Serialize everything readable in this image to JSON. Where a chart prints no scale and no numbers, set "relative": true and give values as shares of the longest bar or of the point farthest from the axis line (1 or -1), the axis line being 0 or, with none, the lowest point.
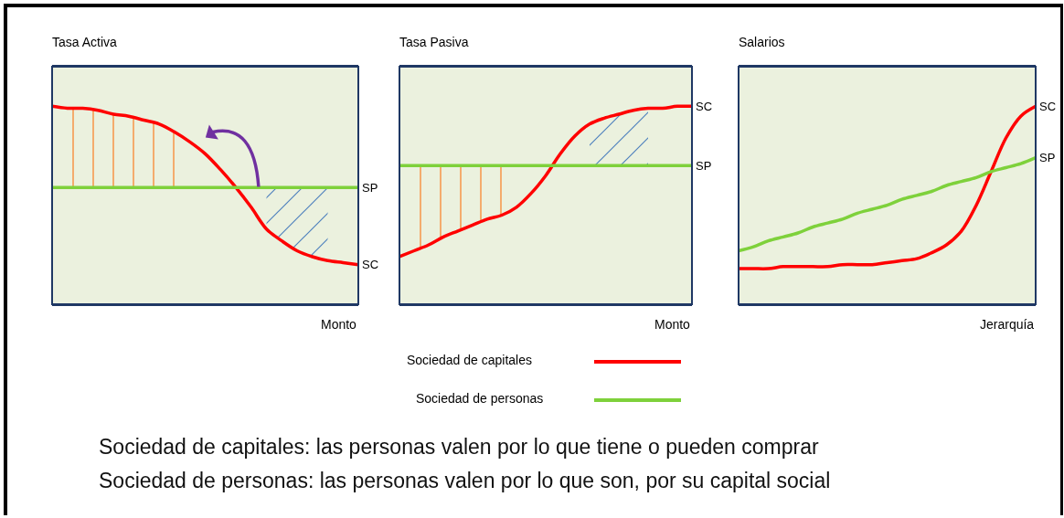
{
  "chart_data": [
    {
      "type": "line",
      "title": "Tasa Activa",
      "xlabel": "Monto",
      "relative": true,
      "categories": [
        null,
        null,
        null,
        null,
        null,
        null,
        null,
        null,
        null,
        null,
        null,
        null,
        null,
        null,
        null,
        null,
        null,
        null,
        null,
        null,
        null
      ],
      "series": [
        {
          "name": "SC",
          "color": "#ff0000",
          "values": [
            1.0,
            0.99,
            0.99,
            0.98,
            0.96,
            0.95,
            0.93,
            0.91,
            0.87,
            0.82,
            0.76,
            0.68,
            0.59,
            0.49,
            0.38,
            0.32,
            0.27,
            0.24,
            0.22,
            0.21,
            0.2
          ]
        },
        {
          "name": "SP",
          "color": "#7ed13b",
          "values": [
            0.59,
            0.59,
            0.59,
            0.59,
            0.59,
            0.59,
            0.59,
            0.59,
            0.59,
            0.59,
            0.59,
            0.59,
            0.59,
            0.59,
            0.59,
            0.59,
            0.59,
            0.59,
            0.59,
            0.59,
            0.59
          ]
        }
      ]
    },
    {
      "type": "line",
      "title": "Tasa Pasiva",
      "xlabel": "Monto",
      "relative": true,
      "categories": [
        null,
        null,
        null,
        null,
        null,
        null,
        null,
        null,
        null,
        null,
        null,
        null,
        null,
        null,
        null,
        null,
        null,
        null,
        null,
        null,
        null
      ],
      "series": [
        {
          "name": "SC",
          "color": "#ff0000",
          "values": [
            0.24,
            0.27,
            0.3,
            0.34,
            0.37,
            0.4,
            0.43,
            0.45,
            0.49,
            0.56,
            0.65,
            0.76,
            0.85,
            0.91,
            0.94,
            0.96,
            0.98,
            0.99,
            0.99,
            1.0,
            1.0
          ]
        },
        {
          "name": "SP",
          "color": "#7ed13b",
          "values": [
            0.7,
            0.7,
            0.7,
            0.7,
            0.7,
            0.7,
            0.7,
            0.7,
            0.7,
            0.7,
            0.7,
            0.7,
            0.7,
            0.7,
            0.7,
            0.7,
            0.7,
            0.7,
            0.7,
            0.7,
            0.7
          ]
        }
      ]
    },
    {
      "type": "line",
      "title": "Salarios",
      "xlabel": "Jerarquía",
      "relative": true,
      "categories": [
        null,
        null,
        null,
        null,
        null,
        null,
        null,
        null,
        null,
        null,
        null,
        null,
        null,
        null,
        null,
        null,
        null,
        null,
        null,
        null,
        null
      ],
      "series": [
        {
          "name": "SC",
          "color": "#ff0000",
          "values": [
            0.18,
            0.18,
            0.18,
            0.19,
            0.19,
            0.19,
            0.19,
            0.2,
            0.2,
            0.2,
            0.21,
            0.22,
            0.23,
            0.26,
            0.3,
            0.37,
            0.5,
            0.67,
            0.84,
            0.95,
            1.0
          ]
        },
        {
          "name": "SP",
          "color": "#7ed13b",
          "values": [
            0.27,
            0.29,
            0.32,
            0.34,
            0.36,
            0.39,
            0.41,
            0.43,
            0.46,
            0.48,
            0.5,
            0.53,
            0.55,
            0.57,
            0.6,
            0.62,
            0.64,
            0.67,
            0.69,
            0.71,
            0.74
          ]
        }
      ]
    },
    {
      "type": "other",
      "annotations": [
        "Sociedad de capitales",
        "Sociedad de personas",
        "Sociedad de capitales: las personas valen por lo que tiene o pueden comprar",
        "Sociedad de personas: las personas valen por lo que son, por su capital social"
      ]
    }
  ]
}
